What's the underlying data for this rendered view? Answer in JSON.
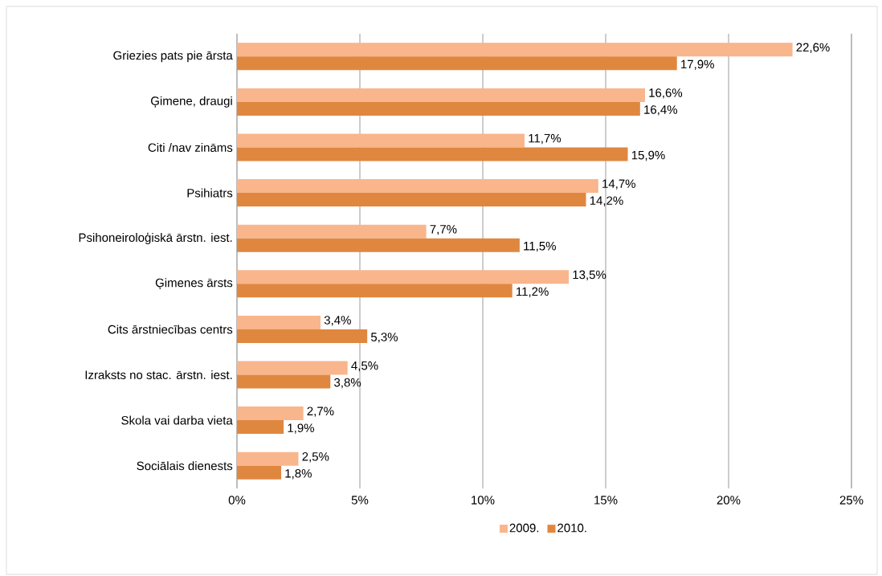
{
  "chart_data": {
    "type": "bar",
    "orientation": "horizontal",
    "categories": [
      "Griezies pats pie ārsta",
      "Ģimene, draugi",
      "Citi /nav zināms",
      "Psihiatrs",
      "Psihoneiroloģiskā ārstn. iest.",
      "Ģimenes ārsts",
      "Cits ārstniecības centrs",
      "Izraksts no stac. ārstn. iest.",
      "Skola vai darba vieta",
      "Sociālais dienests"
    ],
    "series": [
      {
        "name": "2009.",
        "color": "#f9b58c",
        "values": [
          22.6,
          16.6,
          11.7,
          14.7,
          7.7,
          13.5,
          3.4,
          4.5,
          2.7,
          2.5
        ],
        "value_labels": [
          "22,6%",
          "16,6%",
          "11,7%",
          "14,7%",
          "7,7%",
          "13,5%",
          "3,4%",
          "4,5%",
          "2,7%",
          "2,5%"
        ]
      },
      {
        "name": "2010.",
        "color": "#e0873f",
        "values": [
          17.9,
          16.4,
          15.9,
          14.2,
          11.5,
          11.2,
          5.3,
          3.8,
          1.9,
          1.8
        ],
        "value_labels": [
          "17,9%",
          "16,4%",
          "15,9%",
          "14,2%",
          "11,5%",
          "11,2%",
          "5,3%",
          "3,8%",
          "1,9%",
          "1,8%"
        ]
      }
    ],
    "xlim": [
      0,
      25
    ],
    "xticks": [
      {
        "value": 0,
        "label": "0%"
      },
      {
        "value": 5,
        "label": "5%"
      },
      {
        "value": 10,
        "label": "10%"
      },
      {
        "value": 15,
        "label": "15%"
      },
      {
        "value": 20,
        "label": "20%"
      },
      {
        "value": 25,
        "label": "25%"
      }
    ],
    "grid": "x",
    "legend": "bottom"
  }
}
